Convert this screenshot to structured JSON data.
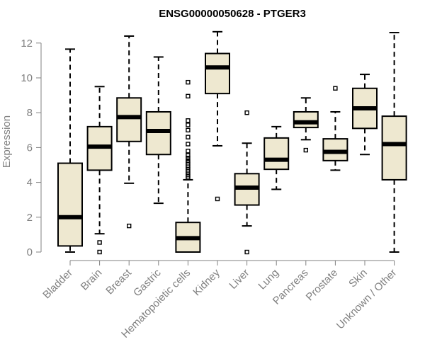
{
  "chart_data": {
    "type": "boxplot",
    "title": "ENSG00000050628 - PTGER3",
    "xlabel": "",
    "ylabel": "Expression",
    "ylim": [
      0,
      12.6
    ],
    "yticks": [
      0,
      2,
      4,
      6,
      8,
      10,
      12
    ],
    "box_fill": "#EEE8D0",
    "categories": [
      "Bladder",
      "Brain",
      "Breast",
      "Gastric",
      "Hematopoietic cells",
      "Kidney",
      "Liver",
      "Lung",
      "Pancreas",
      "Prostate",
      "Skin",
      "Unknown / Other"
    ],
    "boxes": [
      {
        "category": "Bladder",
        "whisker_low": 0.0,
        "q1": 0.35,
        "median": 2.0,
        "q3": 5.1,
        "whisker_high": 11.65,
        "outliers": []
      },
      {
        "category": "Brain",
        "whisker_low": 1.05,
        "q1": 4.7,
        "median": 6.05,
        "q3": 7.2,
        "whisker_high": 9.5,
        "outliers": [
          0.55,
          0.0
        ]
      },
      {
        "category": "Breast",
        "whisker_low": 3.95,
        "q1": 6.35,
        "median": 7.75,
        "q3": 8.85,
        "whisker_high": 12.4,
        "outliers": [
          1.5
        ]
      },
      {
        "category": "Gastric",
        "whisker_low": 2.8,
        "q1": 5.6,
        "median": 6.95,
        "q3": 8.05,
        "whisker_high": 11.2,
        "outliers": []
      },
      {
        "category": "Hematopoietic cells",
        "whisker_low": 0.0,
        "q1": 0.0,
        "median": 0.8,
        "q3": 1.7,
        "whisker_high": 4.15,
        "outliers": [
          4.25,
          4.35,
          4.45,
          4.55,
          4.65,
          4.75,
          4.85,
          4.95,
          5.05,
          5.15,
          5.25,
          5.4,
          5.55,
          5.8,
          6.2,
          6.6,
          7.0,
          7.3,
          7.55,
          8.95,
          9.75
        ]
      },
      {
        "category": "Kidney",
        "whisker_low": 6.1,
        "q1": 9.1,
        "median": 10.6,
        "q3": 11.4,
        "whisker_high": 12.65,
        "outliers": [
          3.05
        ]
      },
      {
        "category": "Liver",
        "whisker_low": 1.5,
        "q1": 2.7,
        "median": 3.7,
        "q3": 4.5,
        "whisker_high": 6.25,
        "outliers": [
          8.0,
          0.0
        ]
      },
      {
        "category": "Lung",
        "whisker_low": 3.6,
        "q1": 4.75,
        "median": 5.3,
        "q3": 6.55,
        "whisker_high": 7.2,
        "outliers": []
      },
      {
        "category": "Pancreas",
        "whisker_low": 6.45,
        "q1": 7.15,
        "median": 7.45,
        "q3": 8.05,
        "whisker_high": 8.85,
        "outliers": [
          5.85
        ]
      },
      {
        "category": "Prostate",
        "whisker_low": 4.7,
        "q1": 5.25,
        "median": 5.75,
        "q3": 6.5,
        "whisker_high": 8.05,
        "outliers": [
          9.4
        ]
      },
      {
        "category": "Skin",
        "whisker_low": 5.6,
        "q1": 7.1,
        "median": 8.25,
        "q3": 9.4,
        "whisker_high": 10.2,
        "outliers": []
      },
      {
        "category": "Unknown / Other",
        "whisker_low": 0.0,
        "q1": 4.15,
        "median": 6.2,
        "q3": 7.8,
        "whisker_high": 12.6,
        "outliers": []
      }
    ]
  }
}
